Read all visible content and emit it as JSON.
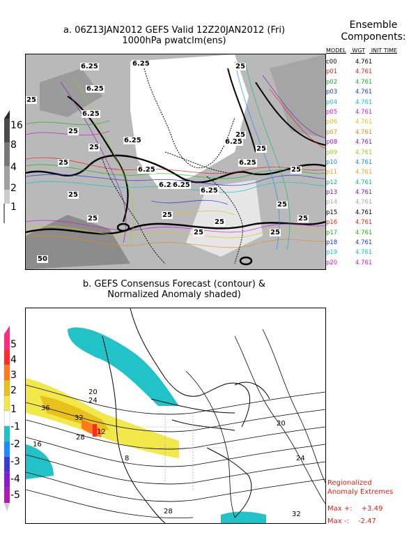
{
  "panel_a": {
    "title_line1": "a. 06Z13JAN2012 GEFS Valid 12Z20JAN2012 (Fri)",
    "title_line2": "1000hPa pwatclm(ens)",
    "colorbar_labels": [
      "16",
      "8",
      "4",
      "2",
      "1"
    ],
    "contour_labels": [
      "6.25",
      "25",
      "50"
    ]
  },
  "ensemble": {
    "heading_line1": "Ensemble",
    "heading_line2": "Components:",
    "col_model": "MODEL",
    "col_wgt": "WGT",
    "col_init": "INIT TIME",
    "members": [
      {
        "name": "c00",
        "wgt": "4.761",
        "color": "#000000"
      },
      {
        "name": "p01",
        "wgt": "4.761",
        "color": "#e8231b"
      },
      {
        "name": "p02",
        "wgt": "4.761",
        "color": "#1fb51f"
      },
      {
        "name": "p03",
        "wgt": "4.761",
        "color": "#2035d8"
      },
      {
        "name": "p04",
        "wgt": "4.761",
        "color": "#12c4c4"
      },
      {
        "name": "p05",
        "wgt": "4.761",
        "color": "#d21ad2"
      },
      {
        "name": "p06",
        "wgt": "4.761",
        "color": "#e0c21a"
      },
      {
        "name": "p07",
        "wgt": "4.761",
        "color": "#e88a1a"
      },
      {
        "name": "p08",
        "wgt": "4.761",
        "color": "#8a1ab5"
      },
      {
        "name": "p09",
        "wgt": "4.761",
        "color": "#9ad21a"
      },
      {
        "name": "p10",
        "wgt": "4.761",
        "color": "#1a8ad2"
      },
      {
        "name": "p11",
        "wgt": "4.761",
        "color": "#e0a81a"
      },
      {
        "name": "p12",
        "wgt": "4.761",
        "color": "#1ab58a"
      },
      {
        "name": "p13",
        "wgt": "4.761",
        "color": "#7a1ab0"
      },
      {
        "name": "p14",
        "wgt": "4.761",
        "color": "#a8a8a8"
      },
      {
        "name": "p15",
        "wgt": "4.761",
        "color": "#000000"
      },
      {
        "name": "p16",
        "wgt": "4.761",
        "color": "#e8231b"
      },
      {
        "name": "p17",
        "wgt": "4.761",
        "color": "#1fb51f"
      },
      {
        "name": "p18",
        "wgt": "4.761",
        "color": "#2035d8"
      },
      {
        "name": "p19",
        "wgt": "4.761",
        "color": "#12c4c4"
      },
      {
        "name": "p20",
        "wgt": "4.761",
        "color": "#d21ad2"
      }
    ]
  },
  "panel_b": {
    "title_line1": "b. GEFS Consensus Forecast (contour) &",
    "title_line2": "Normalized Anomaly shaded)",
    "colorbar_labels": [
      "5",
      "4",
      "3",
      "2",
      "1",
      "-1",
      "-2",
      "-3",
      "-4",
      "-5"
    ],
    "colorbar_colors": [
      "#ff2a7f",
      "#ff2a2a",
      "#ff7a1a",
      "#e8c21a",
      "#f2e84a",
      "#ffffff",
      "#22c3c8",
      "#1a8aff",
      "#3a3ad2",
      "#8a1ad2",
      "#b01ab0"
    ],
    "contour_labels": [
      "36",
      "32",
      "28",
      "24",
      "20",
      "16",
      "12",
      "8",
      "20",
      "24",
      "28",
      "32"
    ]
  },
  "extremes": {
    "heading_line1": "Regionalized",
    "heading_line2": "Anomaly Extremes",
    "max_plus_label": "Max +:",
    "max_plus_value": "+3.49",
    "max_minus_label": "Max -:",
    "max_minus_value": "-2.47"
  }
}
